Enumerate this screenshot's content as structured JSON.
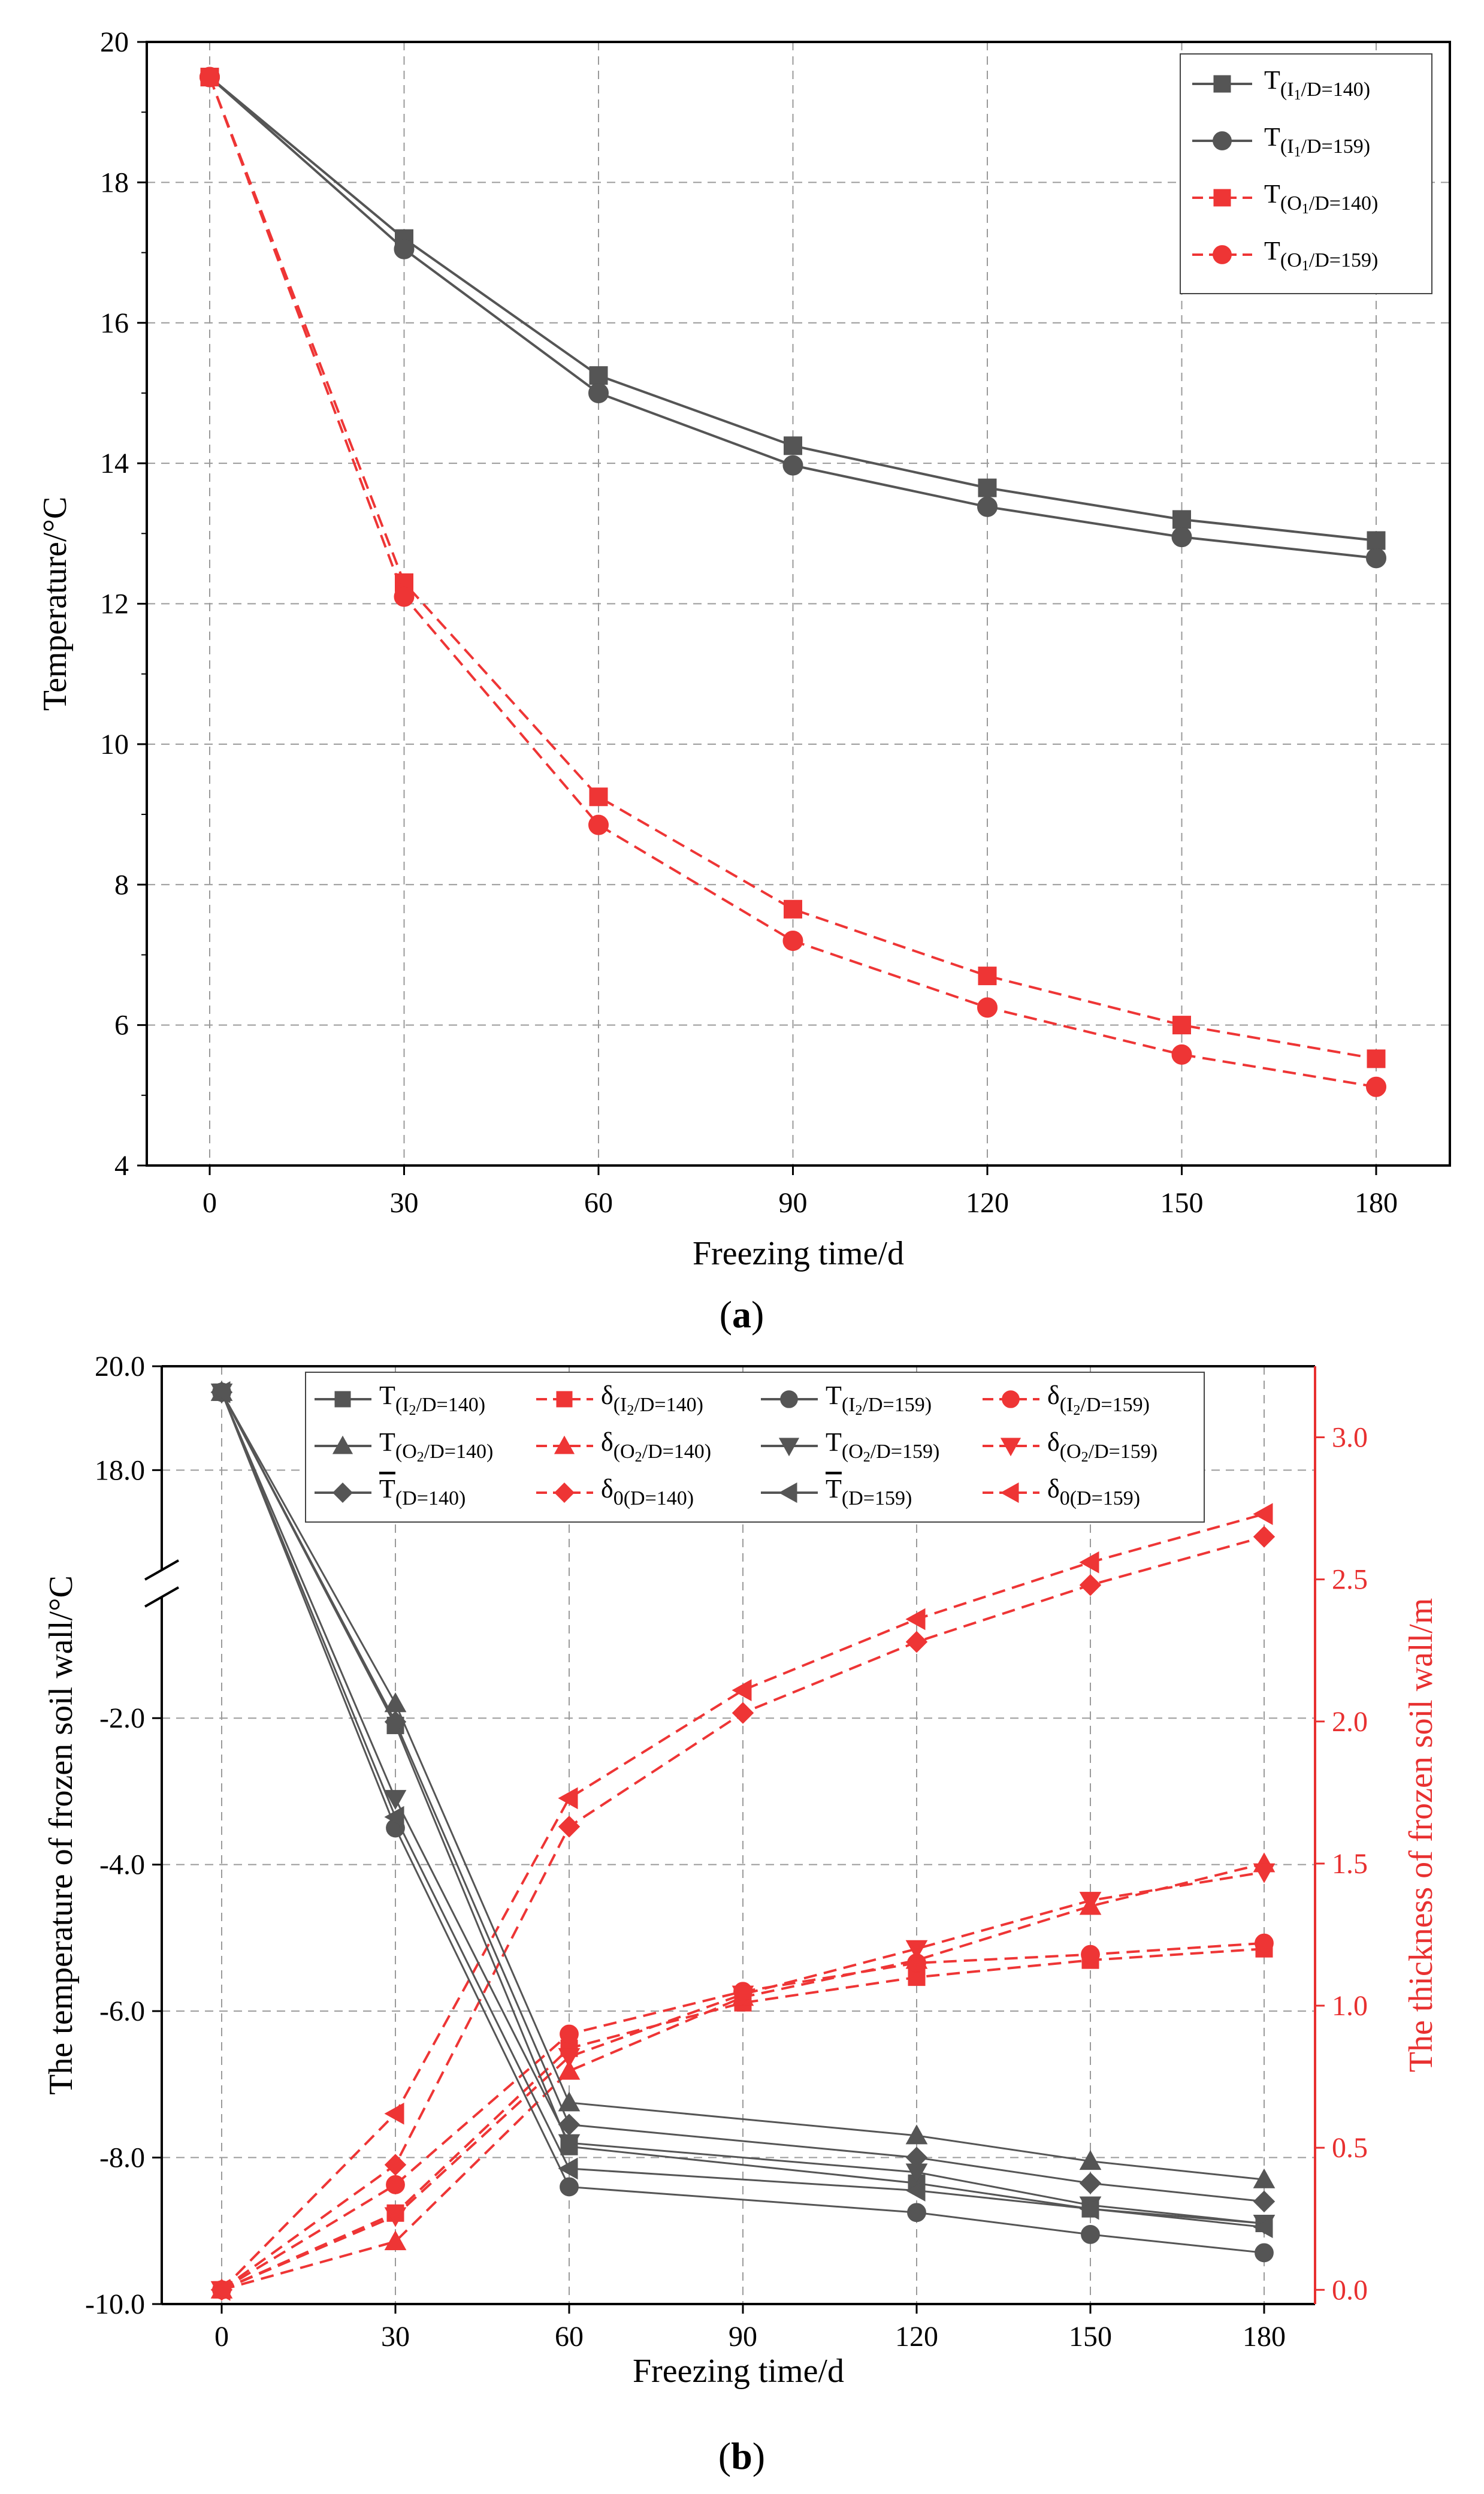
{
  "chart_data": [
    {
      "panel": "a",
      "type": "line",
      "caption": [
        "(",
        "a",
        ")"
      ],
      "xlabel": "Freezing time/d",
      "ylabel": "Temperature/°C",
      "x": [
        0,
        30,
        60,
        90,
        120,
        150,
        180
      ],
      "xticks": [
        "0",
        "30",
        "60",
        "90",
        "120",
        "150",
        "180"
      ],
      "ylim": [
        4,
        20
      ],
      "yticks": [
        "4",
        "6",
        "8",
        "10",
        "12",
        "14",
        "16",
        "18",
        "20"
      ],
      "grid": true,
      "legend_position": "top-right",
      "series": [
        {
          "name": "T(I1/D=140)",
          "label_parts": [
            "T",
            "(I",
            "1",
            "/D=140)"
          ],
          "marker": "square",
          "color": "#555555",
          "dashed": false,
          "values": [
            19.5,
            17.2,
            15.25,
            14.25,
            13.65,
            13.2,
            12.9
          ]
        },
        {
          "name": "T(I1/D=159)",
          "label_parts": [
            "T",
            "(I",
            "1",
            "/D=159)"
          ],
          "marker": "circle",
          "color": "#555555",
          "dashed": false,
          "values": [
            19.5,
            17.05,
            15.0,
            13.97,
            13.38,
            12.95,
            12.65
          ]
        },
        {
          "name": "T(O1/D=140)",
          "label_parts": [
            "T",
            "(O",
            "1",
            "/D=140)"
          ],
          "marker": "square",
          "color": "#ee3535",
          "dashed": true,
          "values": [
            19.5,
            12.3,
            9.25,
            7.65,
            6.7,
            6.0,
            5.52
          ]
        },
        {
          "name": "T(O1/D=159)",
          "label_parts": [
            "T",
            "(O",
            "1",
            "/D=159)"
          ],
          "marker": "circle",
          "color": "#ee3535",
          "dashed": true,
          "values": [
            19.5,
            12.1,
            8.85,
            7.2,
            6.25,
            5.58,
            5.12
          ]
        }
      ]
    },
    {
      "panel": "b",
      "type": "line",
      "caption": [
        "(",
        "b",
        ")"
      ],
      "xlabel": "Freezing time/d",
      "ylabel_left": "The temperature of frozen soil wall/°C",
      "ylabel_right": "The thickness of frozen soil wall/m",
      "x": [
        0,
        30,
        60,
        90,
        120,
        150,
        180
      ],
      "xticks": [
        "0",
        "30",
        "60",
        "90",
        "120",
        "150",
        "180"
      ],
      "ylim_left": [
        -10,
        20
      ],
      "ylim_left_axis_break": [
        -1,
        17
      ],
      "yticks_left": [
        "-10.0",
        "-8.0",
        "-6.0",
        "-4.0",
        "-2.0",
        "18.0",
        "20.0"
      ],
      "ylim_right": [
        -0.05,
        3.25
      ],
      "yticks_right": [
        "0.0",
        "0.5",
        "1.0",
        "1.5",
        "2.0",
        "2.5",
        "3.0"
      ],
      "grid": true,
      "legend_position": "top",
      "temperature_series": [
        {
          "name": "T(I2/D=140)",
          "label_parts": [
            "T",
            "(I",
            "2",
            "/D=140)"
          ],
          "overline": false,
          "marker": "square",
          "color": "#555555",
          "values": [
            19.5,
            -2.1,
            -7.85,
            null,
            -8.35,
            -8.7,
            -8.9
          ]
        },
        {
          "name": "T(O2/D=140)",
          "label_parts": [
            "T",
            "(O",
            "2",
            "/D=140)"
          ],
          "overline": false,
          "marker": "triangle-up",
          "color": "#555555",
          "values": [
            19.5,
            -1.8,
            -7.25,
            null,
            -7.7,
            -8.05,
            -8.3
          ]
        },
        {
          "name": "T̄(D=140)",
          "label_parts": [
            "T",
            "(D=140)",
            "",
            ""
          ],
          "overline": true,
          "marker": "diamond",
          "color": "#555555",
          "values": [
            19.5,
            -2.05,
            -7.55,
            null,
            -8.0,
            -8.35,
            -8.6
          ]
        },
        {
          "name": "T(I2/D=159)",
          "label_parts": [
            "T",
            "(I",
            "2",
            "/D=159)"
          ],
          "overline": false,
          "marker": "circle",
          "color": "#555555",
          "values": [
            19.5,
            -3.5,
            -8.4,
            null,
            -8.75,
            -9.05,
            -9.3
          ]
        },
        {
          "name": "T(O2/D=159)",
          "label_parts": [
            "T",
            "(O",
            "2",
            "/D=159)"
          ],
          "overline": false,
          "marker": "triangle-down",
          "color": "#555555",
          "values": [
            19.5,
            -3.1,
            -7.8,
            null,
            -8.2,
            -8.65,
            -8.9
          ]
        },
        {
          "name": "T̄(D=159)",
          "label_parts": [
            "T",
            "(D=159)",
            "",
            ""
          ],
          "overline": true,
          "marker": "triangle-left",
          "color": "#555555",
          "values": [
            19.5,
            -3.35,
            -8.15,
            null,
            -8.45,
            -8.7,
            -8.95
          ]
        }
      ],
      "thickness_series": [
        {
          "name": "δ(I2/D=140)",
          "label_parts": [
            "δ",
            "(I",
            "2",
            "/D=140)"
          ],
          "marker": "square",
          "color": "#ee3535",
          "values": [
            0.0,
            0.27,
            0.85,
            1.01,
            1.1,
            1.16,
            1.2
          ]
        },
        {
          "name": "δ(O2/D=140)",
          "label_parts": [
            "δ",
            "(O",
            "2",
            "/D=140)"
          ],
          "marker": "triangle-up",
          "color": "#ee3535",
          "values": [
            0.0,
            0.17,
            0.77,
            1.03,
            1.16,
            1.35,
            1.5
          ]
        },
        {
          "name": "δ0(D=140)",
          "label_parts": [
            "δ",
            "0(D=140)",
            "",
            ""
          ],
          "marker": "diamond",
          "color": "#ee3535",
          "values": [
            0.0,
            0.44,
            1.63,
            2.03,
            2.28,
            2.48,
            2.65
          ]
        },
        {
          "name": "δ(I2/D=159)",
          "label_parts": [
            "δ",
            "(I",
            "2",
            "/D=159)"
          ],
          "marker": "circle",
          "color": "#ee3535",
          "values": [
            0.0,
            0.37,
            0.9,
            1.05,
            1.15,
            1.18,
            1.22
          ]
        },
        {
          "name": "δ(O2/D=159)",
          "label_parts": [
            "δ",
            "(O",
            "2",
            "/D=159)"
          ],
          "marker": "triangle-down",
          "color": "#ee3535",
          "values": [
            0.0,
            0.26,
            0.82,
            1.04,
            1.2,
            1.37,
            1.47
          ]
        },
        {
          "name": "δ0(D=159)",
          "label_parts": [
            "δ",
            "0(D=159)",
            "",
            ""
          ],
          "marker": "triangle-left",
          "color": "#ee3535",
          "values": [
            0.0,
            0.62,
            1.73,
            2.11,
            2.36,
            2.56,
            2.73
          ]
        }
      ],
      "legend_order": [
        "T(I2/D=140)",
        "δ(I2/D=140)",
        "T(I2/D=159)",
        "δ(I2/D=159)",
        "T(O2/D=140)",
        "δ(O2/D=140)",
        "T(O2/D=159)",
        "δ(O2/D=159)",
        "T̄(D=140)",
        "δ0(D=140)",
        "T̄(D=159)",
        "δ0(D=159)"
      ]
    }
  ]
}
